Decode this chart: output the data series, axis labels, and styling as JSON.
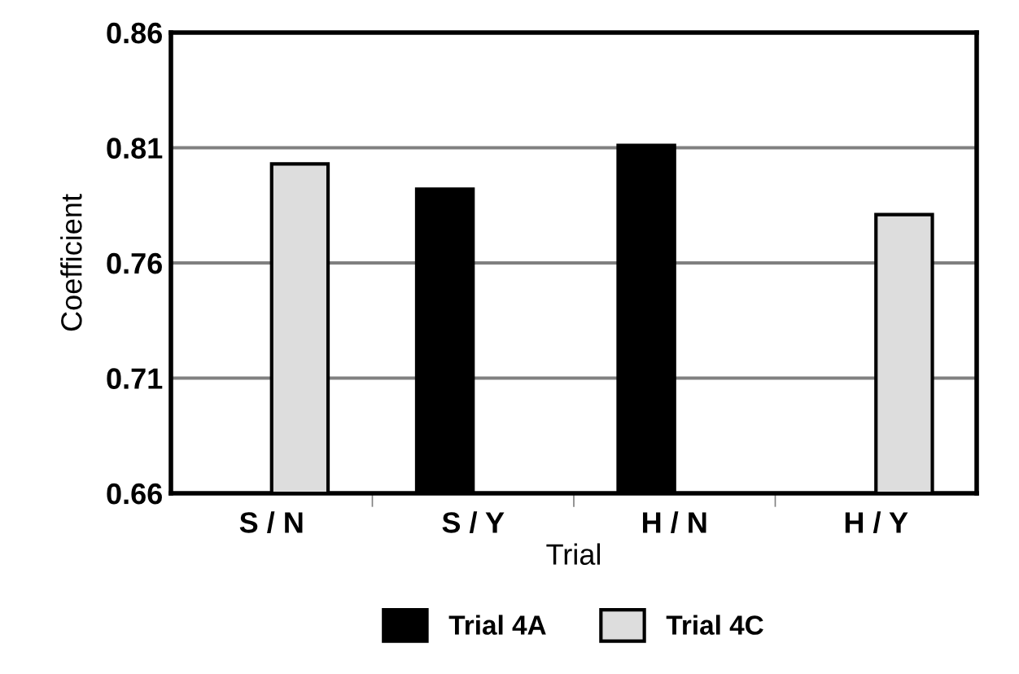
{
  "chart_data": {
    "type": "bar",
    "xlabel": "Trial",
    "ylabel": "Coefficient",
    "categories": [
      "S / N",
      "S / Y",
      "H / N",
      "H / Y"
    ],
    "series": [
      {
        "name": "Trial 4A",
        "color": "#000000",
        "values": [
          null,
          0.792,
          0.811,
          null
        ]
      },
      {
        "name": "Trial 4C",
        "color": "#dddddd",
        "values": [
          0.803,
          null,
          null,
          0.781
        ]
      }
    ],
    "ylim": [
      0.66,
      0.86
    ],
    "yticks": [
      {
        "value": 0.66,
        "label": "0.66"
      },
      {
        "value": 0.71,
        "label": "0.71"
      },
      {
        "value": 0.76,
        "label": "0.76"
      },
      {
        "value": 0.81,
        "label": "0.81"
      },
      {
        "value": 0.86,
        "label": "0.86"
      }
    ],
    "grid": "y",
    "legend": "bottom"
  }
}
